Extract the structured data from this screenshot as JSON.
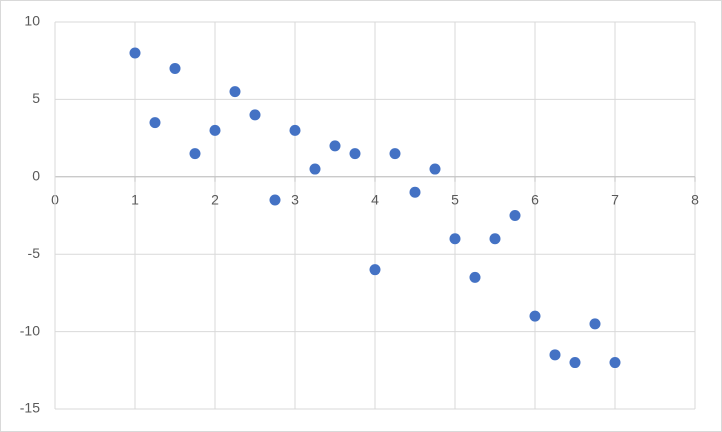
{
  "chart_data": {
    "type": "scatter",
    "x": [
      1,
      1.25,
      1.5,
      1.75,
      2,
      2.25,
      2.5,
      2.75,
      3,
      3.25,
      3.5,
      3.75,
      4,
      4.25,
      4.5,
      4.75,
      5,
      5.25,
      5.5,
      5.75,
      6,
      6.25,
      6.5,
      6.75,
      7
    ],
    "values": [
      8,
      3.5,
      7,
      1.5,
      3,
      5.5,
      4,
      -1.5,
      3,
      0.5,
      2,
      1.5,
      -6,
      1.5,
      -1,
      0.5,
      -4,
      -6.5,
      -4,
      -2.5,
      -9,
      -11.5,
      -12,
      -9.5,
      -12
    ],
    "color": "#4472c4",
    "xlim": [
      0,
      8
    ],
    "xticks": [
      0,
      1,
      2,
      3,
      4,
      5,
      6,
      7,
      8
    ],
    "ylim": [
      -15,
      10
    ],
    "yticks": [
      -15,
      -10,
      -5,
      0,
      5,
      10
    ],
    "grid": true
  }
}
